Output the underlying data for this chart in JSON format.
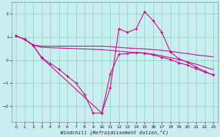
{
  "xlabel": "Windchill (Refroidissement éolien,°C)",
  "bg_color": "#c8eef0",
  "line_color": "#cc0088",
  "grid_color": "#88ccbb",
  "xlim": [
    -0.5,
    23.5
  ],
  "ylim": [
    -2.7,
    2.5
  ],
  "yticks": [
    -2,
    -1,
    0,
    1,
    2
  ],
  "xticks": [
    0,
    1,
    2,
    3,
    4,
    5,
    6,
    7,
    8,
    9,
    10,
    11,
    12,
    13,
    14,
    15,
    16,
    17,
    18,
    19,
    20,
    21,
    22,
    23
  ],
  "line1_x": [
    0,
    1,
    2,
    3,
    4,
    5,
    6,
    7,
    8,
    9,
    10,
    11,
    12,
    13,
    14,
    15,
    16,
    17,
    18,
    19,
    20,
    21,
    22,
    23
  ],
  "line1_y": [
    1.05,
    0.9,
    0.65,
    0.1,
    -0.15,
    -0.4,
    -0.7,
    -1.0,
    -1.5,
    -2.3,
    -2.3,
    -1.2,
    1.35,
    1.2,
    1.35,
    2.1,
    1.7,
    1.2,
    0.35,
    0.05,
    -0.1,
    -0.3,
    -0.5,
    -0.65
  ],
  "line2_x": [
    0,
    1,
    2,
    3,
    10,
    11,
    12,
    13,
    14,
    15,
    16,
    17,
    18,
    19,
    20,
    21,
    22,
    23
  ],
  "line2_y": [
    1.05,
    0.9,
    0.65,
    0.6,
    0.6,
    0.58,
    0.55,
    0.52,
    0.5,
    0.48,
    0.45,
    0.42,
    0.38,
    0.32,
    0.28,
    0.22,
    0.18,
    0.14
  ],
  "line3_x": [
    0,
    1,
    2,
    3,
    10,
    11,
    12,
    13,
    14,
    15,
    16,
    17,
    18,
    19,
    20,
    21,
    22,
    23
  ],
  "line3_y": [
    1.05,
    0.9,
    0.65,
    0.55,
    0.45,
    0.42,
    0.38,
    0.35,
    0.32,
    0.3,
    0.25,
    0.18,
    0.1,
    0.02,
    -0.08,
    -0.18,
    -0.3,
    -0.42
  ],
  "line4_x": [
    0,
    1,
    2,
    3,
    10,
    11,
    12,
    13,
    14,
    15,
    16,
    17,
    18,
    19,
    20,
    21,
    22,
    23
  ],
  "line4_y": [
    1.05,
    0.9,
    0.65,
    0.1,
    -2.3,
    -0.6,
    0.25,
    0.28,
    0.32,
    0.3,
    0.22,
    0.12,
    0.02,
    -0.12,
    -0.22,
    -0.38,
    -0.52,
    -0.65
  ]
}
